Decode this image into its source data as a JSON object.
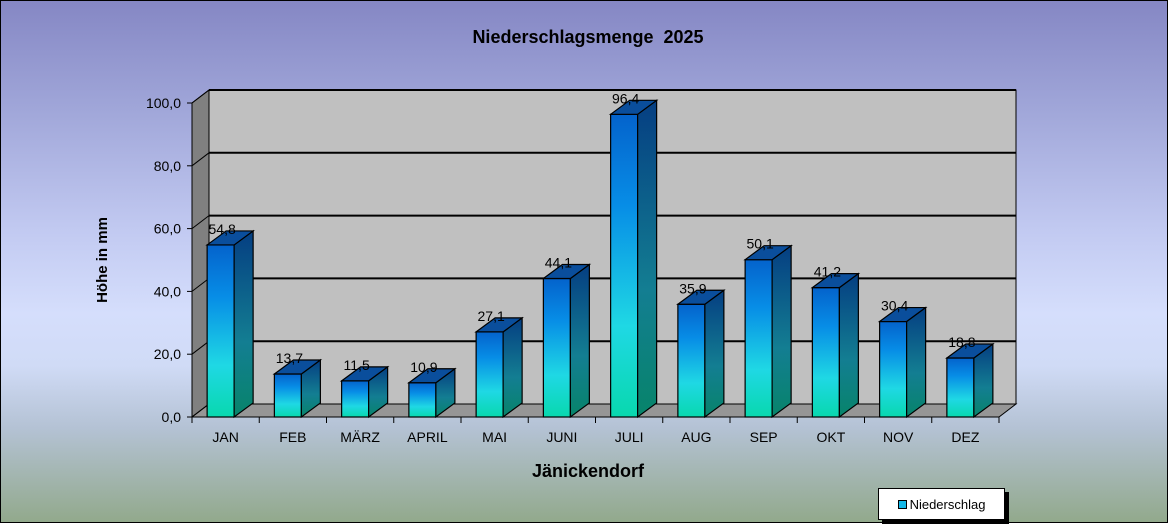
{
  "chart_data": {
    "type": "bar",
    "title": "Niederschlagsmenge  2025",
    "xlabel": "Jänickendorf",
    "ylabel": "Höhe in mm",
    "categories": [
      "JAN",
      "FEB",
      "MÄRZ",
      "APRIL",
      "MAI",
      "JUNI",
      "JULI",
      "AUG",
      "SEP",
      "OKT",
      "NOV",
      "DEZ"
    ],
    "series": [
      {
        "name": "Niederschlag",
        "values": [
          54.8,
          13.7,
          11.5,
          10.9,
          27.1,
          44.1,
          96.4,
          35.9,
          50.1,
          41.2,
          30.4,
          18.8
        ]
      }
    ],
    "data_labels": [
      "54,8",
      "13,7",
      "11,5",
      "10,9",
      "27,1",
      "44,1",
      "96,4",
      "35,9",
      "50,1",
      "41,2",
      "30,4",
      "18,8"
    ],
    "ylim": [
      0,
      100
    ],
    "yticks": [
      "0,0",
      "20,0",
      "40,0",
      "60,0",
      "80,0",
      "100,0"
    ],
    "ytick_values": [
      0,
      20,
      40,
      60,
      80,
      100
    ],
    "grid": true,
    "legend_position": "bottom-right",
    "style": "3d-column"
  },
  "colors": {
    "bar_top": "#0a4e9c",
    "bar_front_top": "#0466d2",
    "bar_front_mid": "#1ed6e6",
    "bar_front_bottom": "#0ad6b0",
    "bar_side_top": "#063f80",
    "bar_side_bottom": "#0a8a70",
    "wall": "#c0c0c0",
    "side_wall": "#808080",
    "floor": "#969696"
  },
  "legend": {
    "label": "Niederschlag"
  }
}
